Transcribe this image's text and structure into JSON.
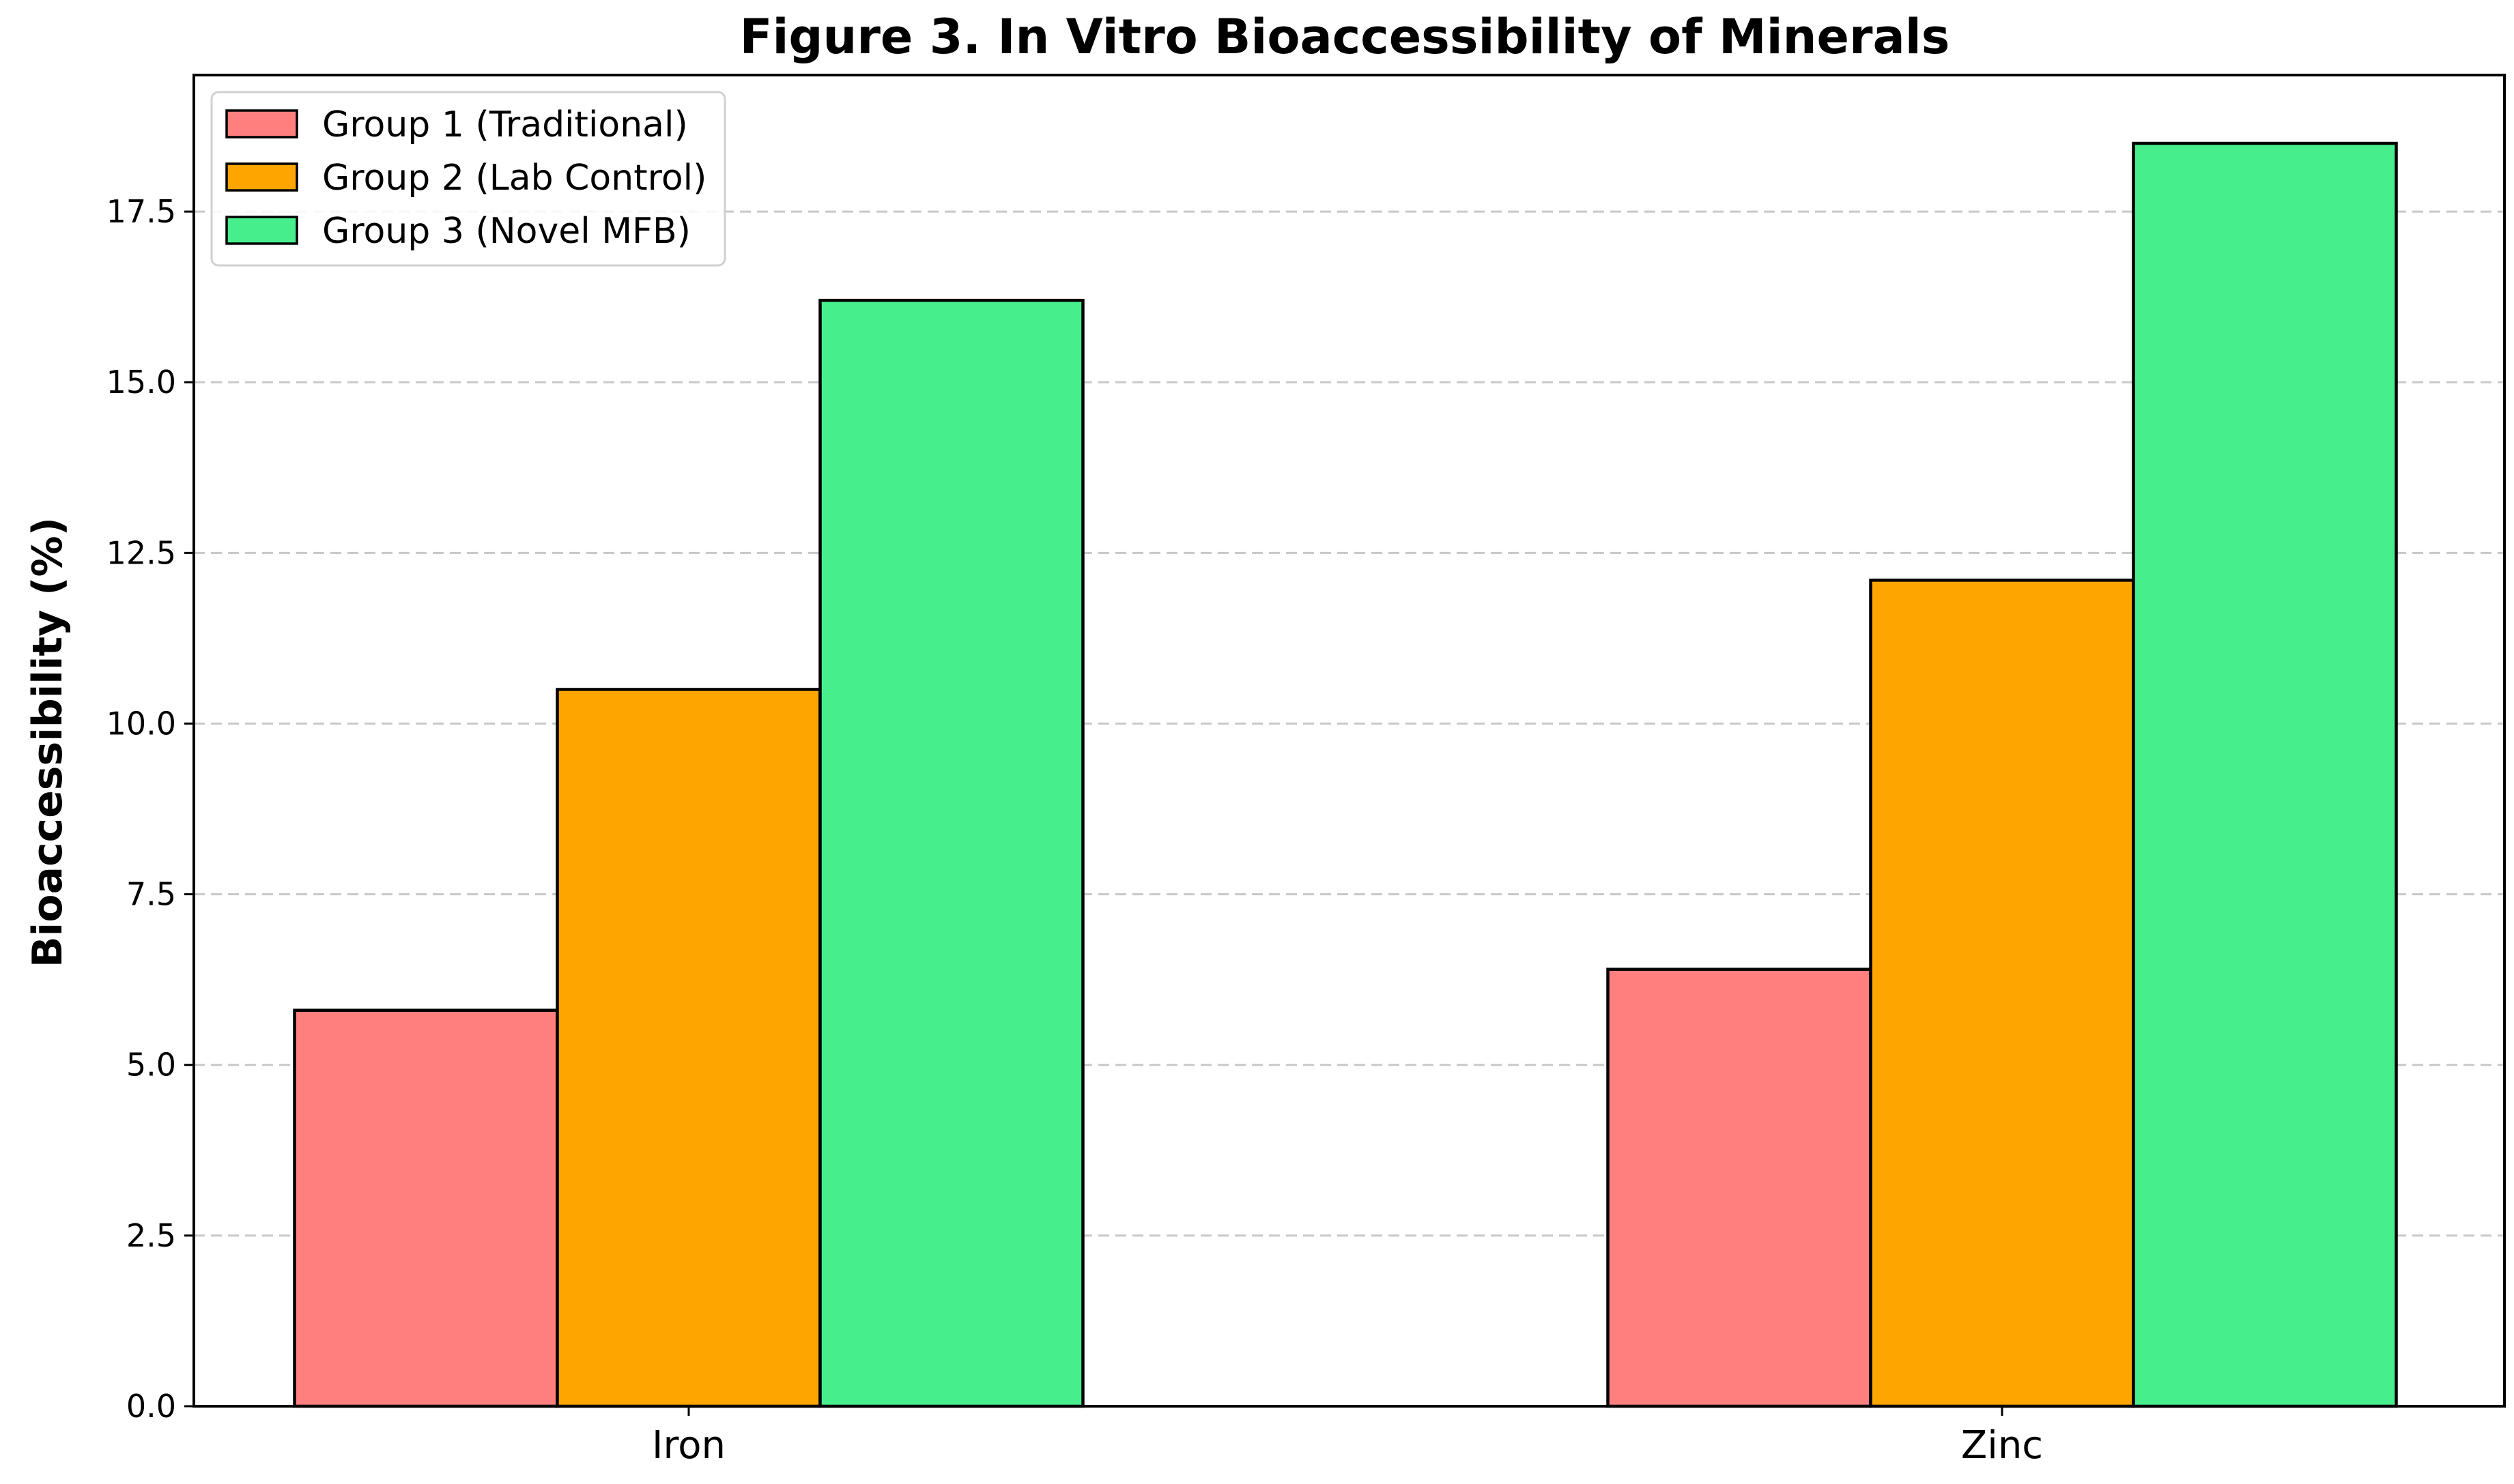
{
  "chart_data": {
    "type": "bar",
    "title": "Figure 3. In Vitro Bioaccessibility of Minerals",
    "xlabel": "",
    "ylabel": "Bioaccessibility (%)",
    "categories": [
      "Iron",
      "Zinc"
    ],
    "ylim": [
      0,
      19.5
    ],
    "yticks": [
      "0.0",
      "2.5",
      "5.0",
      "7.5",
      "10.0",
      "12.5",
      "15.0",
      "17.5"
    ],
    "grid": "y-dashed",
    "legend_position": "upper-left",
    "series": [
      {
        "name": "Group 1 (Traditional)",
        "color": "#ff7f7f",
        "values": [
          5.8,
          6.4
        ]
      },
      {
        "name": "Group 2 (Lab Control)",
        "color": "#ffa500",
        "values": [
          10.5,
          12.1
        ]
      },
      {
        "name": "Group 3 (Novel MFB)",
        "color": "#47ef8c",
        "values": [
          16.2,
          18.5
        ]
      }
    ]
  }
}
